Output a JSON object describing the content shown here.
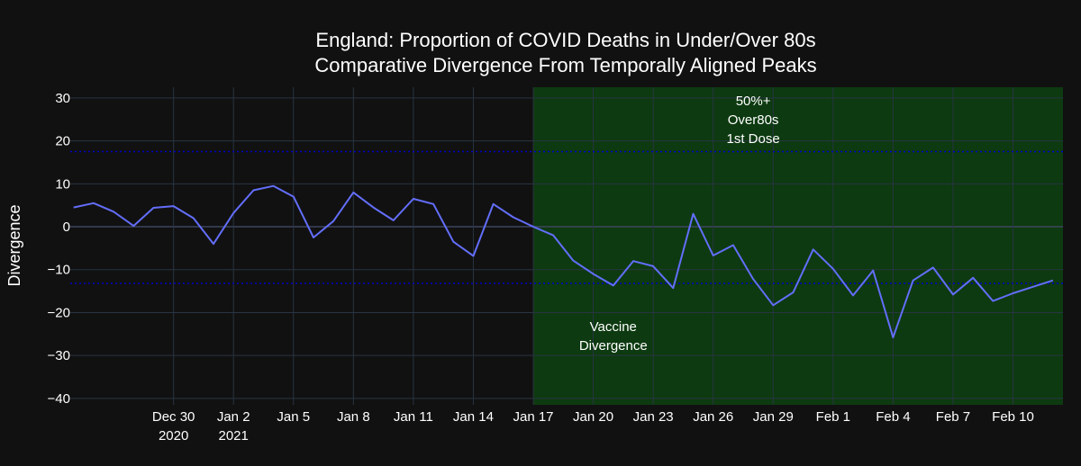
{
  "chart_data": {
    "type": "line",
    "title": "England: Proportion of COVID Deaths in Under/Over 80s",
    "subtitle": "Comparative Divergence From Temporally Aligned Peaks",
    "xlabel": "",
    "ylabel": "Divergence",
    "ylim": [
      -41.5,
      32.5
    ],
    "xlim": [
      "2020-12-24T20:00",
      "2021-02-12T12:00"
    ],
    "yticks": [
      30,
      20,
      10,
      0,
      -10,
      -20,
      -30,
      -40
    ],
    "ytick_labels": [
      "30",
      "20",
      "10",
      "0",
      "−10",
      "−20",
      "−30",
      "−40"
    ],
    "xticks": [
      {
        "x": "2020-12-30",
        "label": "Dec 30",
        "label2": "2020"
      },
      {
        "x": "2021-01-02",
        "label": "Jan 2",
        "label2": "2021"
      },
      {
        "x": "2021-01-05",
        "label": "Jan 5",
        "label2": ""
      },
      {
        "x": "2021-01-08",
        "label": "Jan 8",
        "label2": ""
      },
      {
        "x": "2021-01-11",
        "label": "Jan 11",
        "label2": ""
      },
      {
        "x": "2021-01-14",
        "label": "Jan 14",
        "label2": ""
      },
      {
        "x": "2021-01-17",
        "label": "Jan 17",
        "label2": ""
      },
      {
        "x": "2021-01-20",
        "label": "Jan 20",
        "label2": ""
      },
      {
        "x": "2021-01-23",
        "label": "Jan 23",
        "label2": ""
      },
      {
        "x": "2021-01-26",
        "label": "Jan 26",
        "label2": ""
      },
      {
        "x": "2021-01-29",
        "label": "Jan 29",
        "label2": ""
      },
      {
        "x": "2021-02-01",
        "label": "Feb 1",
        "label2": ""
      },
      {
        "x": "2021-02-04",
        "label": "Feb 4",
        "label2": ""
      },
      {
        "x": "2021-02-07",
        "label": "Feb 7",
        "label2": ""
      },
      {
        "x": "2021-02-10",
        "label": "Feb 10",
        "label2": ""
      }
    ],
    "series": [
      {
        "color": "#636efa",
        "x": [
          "2020-12-25",
          "2020-12-26",
          "2020-12-27",
          "2020-12-28",
          "2020-12-29",
          "2020-12-30",
          "2020-12-31",
          "2021-01-01",
          "2021-01-02",
          "2021-01-03",
          "2021-01-04",
          "2021-01-05",
          "2021-01-06",
          "2021-01-07",
          "2021-01-08",
          "2021-01-09",
          "2021-01-10",
          "2021-01-11",
          "2021-01-12",
          "2021-01-13",
          "2021-01-14",
          "2021-01-15",
          "2021-01-16",
          "2021-01-17",
          "2021-01-18",
          "2021-01-19",
          "2021-01-20",
          "2021-01-21",
          "2021-01-22",
          "2021-01-23",
          "2021-01-24",
          "2021-01-25",
          "2021-01-26",
          "2021-01-27",
          "2021-01-28",
          "2021-01-29",
          "2021-01-30",
          "2021-01-31",
          "2021-02-01",
          "2021-02-02",
          "2021-02-03",
          "2021-02-04",
          "2021-02-05",
          "2021-02-06",
          "2021-02-07",
          "2021-02-08",
          "2021-02-09",
          "2021-02-10",
          "2021-02-11",
          "2021-02-12"
        ],
        "y": [
          4.5,
          5.5,
          3.5,
          0.2,
          4.4,
          4.8,
          2.0,
          -4.0,
          3.2,
          8.5,
          9.5,
          7.0,
          -2.5,
          1.3,
          8.0,
          4.5,
          1.5,
          6.5,
          5.3,
          -3.5,
          -6.8,
          5.3,
          2.2,
          0,
          -2.0,
          -7.9,
          -11.0,
          -13.7,
          -8.0,
          -9.2,
          -14.3,
          3.0,
          -6.7,
          -4.3,
          -12.2,
          -18.3,
          -15.3,
          -5.3,
          -9.8,
          -16.0,
          -10.2,
          -25.8,
          -12.5,
          -9.5,
          -15.8,
          -11.9,
          -17.3,
          -15.5,
          -14.0,
          -12.5
        ]
      }
    ],
    "hlines": [
      {
        "y": 17.5,
        "color": "#0000cc",
        "style": "dotted"
      },
      {
        "y": -13.2,
        "color": "#0000cc",
        "style": "dotted"
      }
    ],
    "shaded_region": {
      "x0": "2021-01-17",
      "x1": "2021-02-12T12:00",
      "color": "#0d3a10"
    },
    "annotations": [
      {
        "lines": [
          "50%+",
          "Over80s",
          "1st Dose"
        ],
        "x": "2021-01-28",
        "y": 25
      },
      {
        "lines": [
          "Vaccine",
          "Divergence"
        ],
        "x": "2021-01-21",
        "y": -25.5
      }
    ],
    "grid": true,
    "legend": "none"
  }
}
